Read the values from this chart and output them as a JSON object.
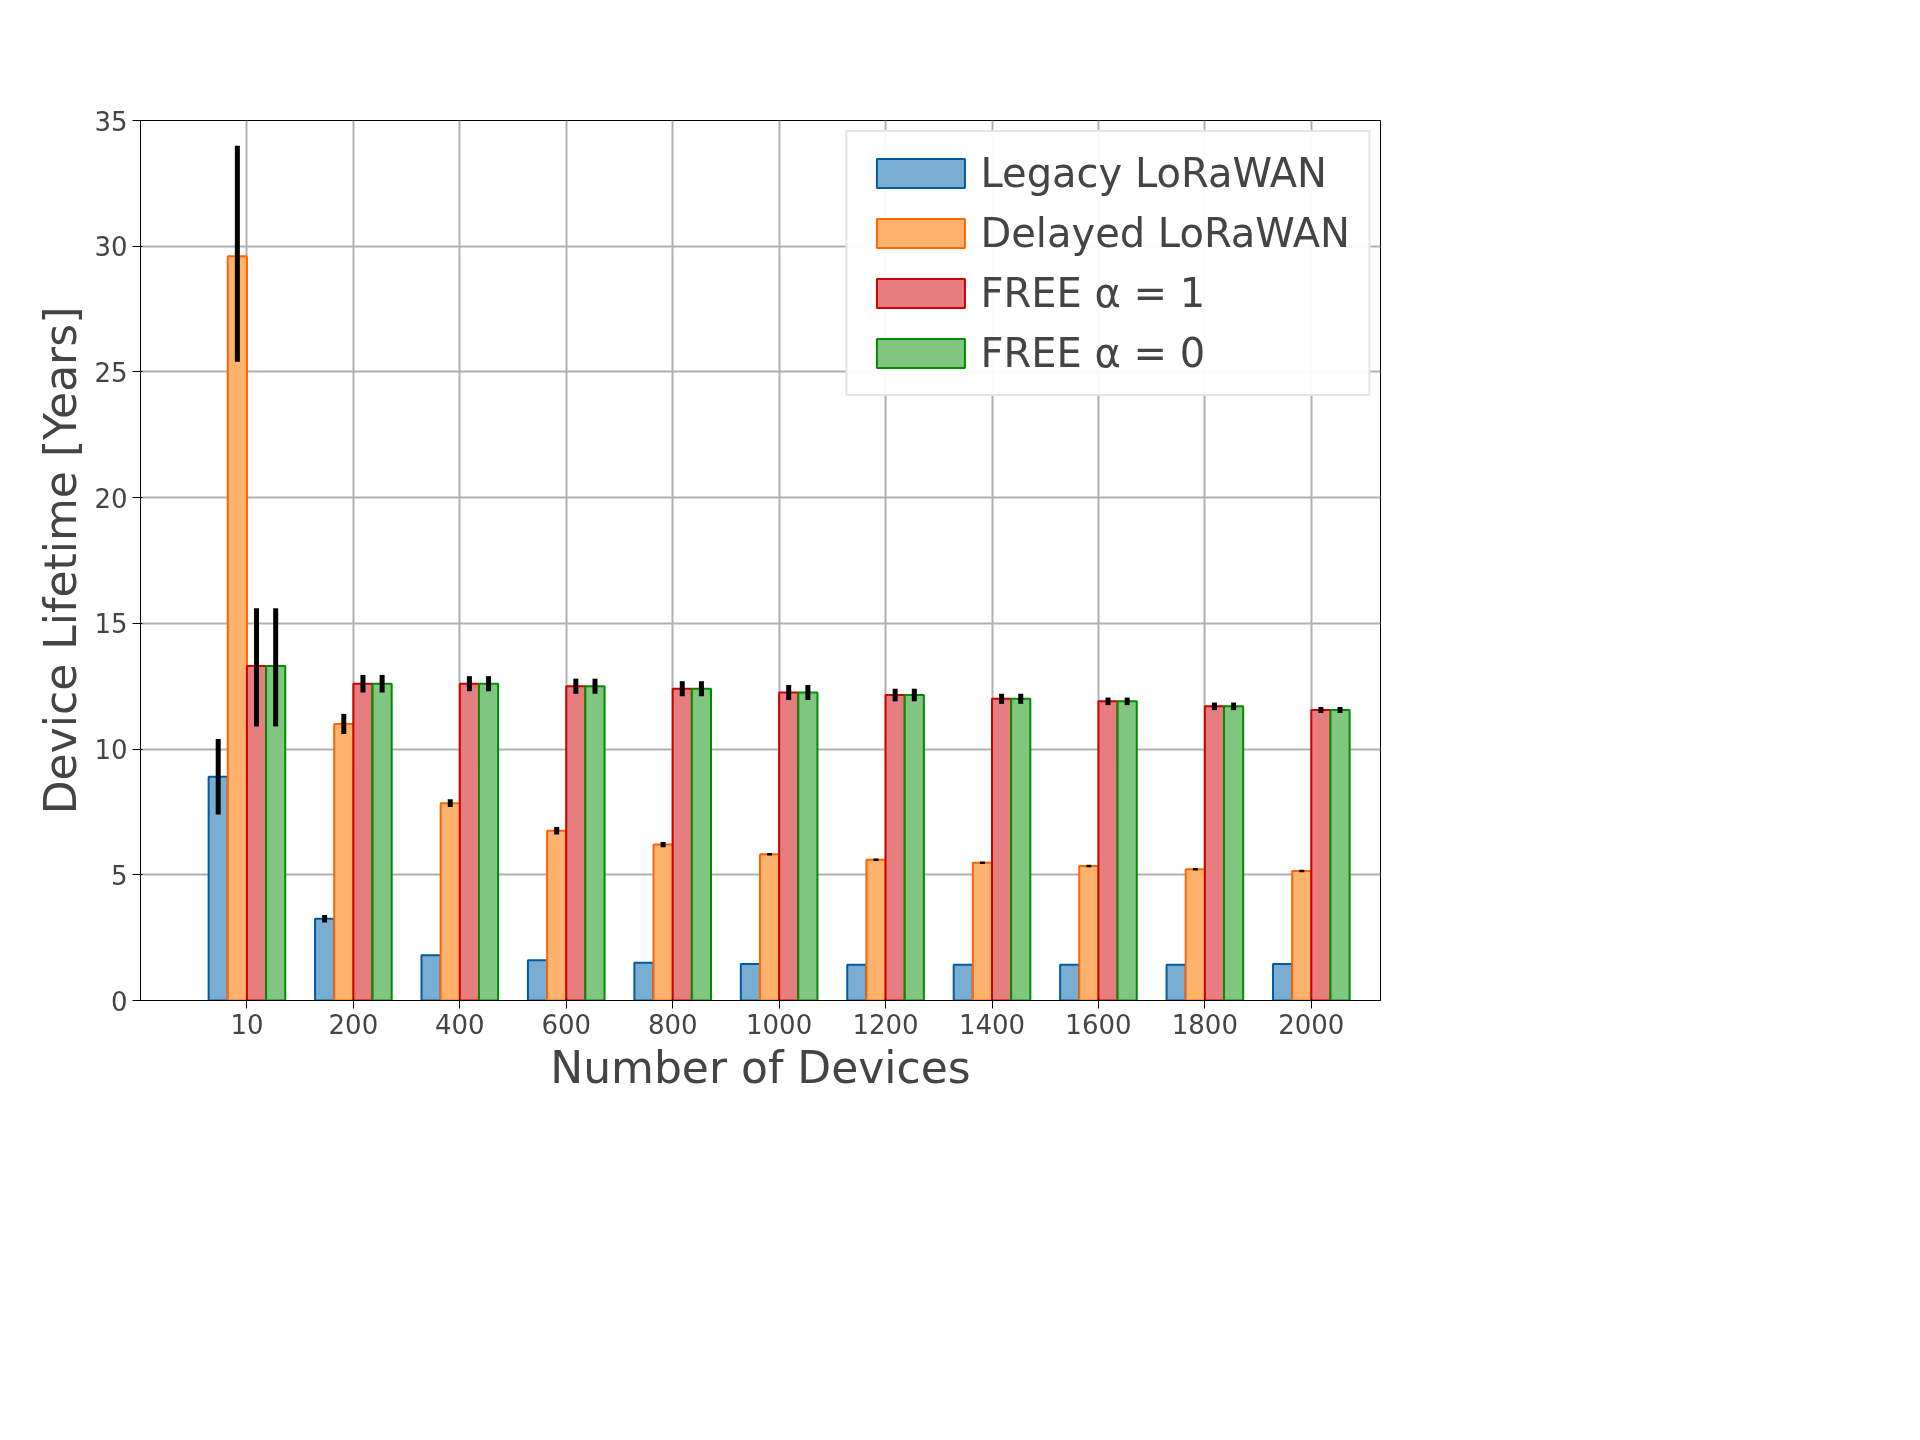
{
  "chart_data": {
    "type": "bar",
    "xlabel": "Number of Devices",
    "ylabel": "Device Lifetime [Years]",
    "categories": [
      "10",
      "200",
      "400",
      "600",
      "800",
      "1000",
      "1200",
      "1400",
      "1600",
      "1800",
      "2000"
    ],
    "series": [
      {
        "name": "Legacy LoRaWAN",
        "color": "#79add2",
        "values": [
          8.9,
          3.25,
          1.8,
          1.6,
          1.5,
          1.45,
          1.42,
          1.42,
          1.42,
          1.42,
          1.45
        ],
        "errors": [
          [
            7.4,
            10.4
          ],
          0.15,
          null,
          null,
          null,
          null,
          null,
          null,
          null,
          null,
          null
        ]
      },
      {
        "name": "Delayed LoRaWAN",
        "color": "#ffb26e",
        "values": [
          29.6,
          11.0,
          7.85,
          6.75,
          6.2,
          5.82,
          5.6,
          5.48,
          5.35,
          5.22,
          5.15
        ],
        "errors": [
          [
            25.4,
            34.0
          ],
          0.4,
          0.15,
          0.15,
          0.1,
          0.05,
          0.05,
          0.05,
          0.05,
          0.05,
          0.05
        ]
      },
      {
        "name": "FREE α = 1",
        "color": "#e67d7e",
        "values": [
          13.3,
          12.6,
          12.6,
          12.5,
          12.4,
          12.25,
          12.15,
          12.0,
          11.9,
          11.7,
          11.55
        ],
        "errors": [
          [
            10.9,
            15.6
          ],
          0.35,
          0.3,
          0.3,
          0.3,
          0.3,
          0.25,
          0.2,
          0.15,
          0.15,
          0.12
        ]
      },
      {
        "name": "FREE α = 0",
        "color": "#80c680",
        "values": [
          13.3,
          12.6,
          12.6,
          12.5,
          12.4,
          12.25,
          12.15,
          12.0,
          11.9,
          11.7,
          11.55
        ],
        "errors": [
          [
            10.9,
            15.6
          ],
          0.35,
          0.3,
          0.3,
          0.3,
          0.3,
          0.25,
          0.2,
          0.15,
          0.15,
          0.12
        ]
      }
    ],
    "ylim": [
      0,
      35
    ],
    "yticks": [
      0,
      5,
      10,
      15,
      20,
      25,
      30,
      35
    ],
    "grid": true,
    "legend": "top right"
  }
}
